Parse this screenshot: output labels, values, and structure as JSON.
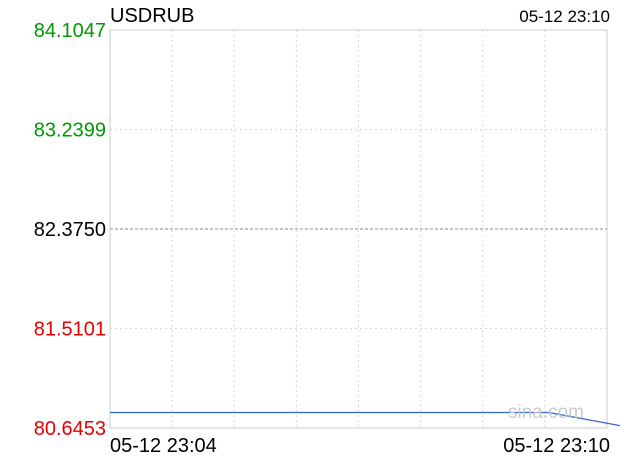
{
  "chart_data": {
    "type": "line",
    "symbol": "USDRUB",
    "timestamp": "05-12 23:10",
    "x_start_label": "05-12 23:04",
    "x_end_label": "05-12 23:10",
    "watermark": "sina.com",
    "y_ticks": [
      {
        "value": "84.1047",
        "color": "#009900"
      },
      {
        "value": "83.2399",
        "color": "#009900"
      },
      {
        "value": "82.3750",
        "color": "#000000"
      },
      {
        "value": "81.5101",
        "color": "#e60000"
      },
      {
        "value": "80.6453",
        "color": "#e60000"
      }
    ],
    "ylim": [
      80.6453,
      84.1047
    ],
    "reference_value": 82.375,
    "x_range_minutes": [
      0,
      6
    ],
    "series": [
      {
        "color": "#3366cc",
        "x": [
          0,
          5.3,
          6.2
        ],
        "values": [
          80.78,
          80.78,
          80.66
        ]
      }
    ]
  }
}
